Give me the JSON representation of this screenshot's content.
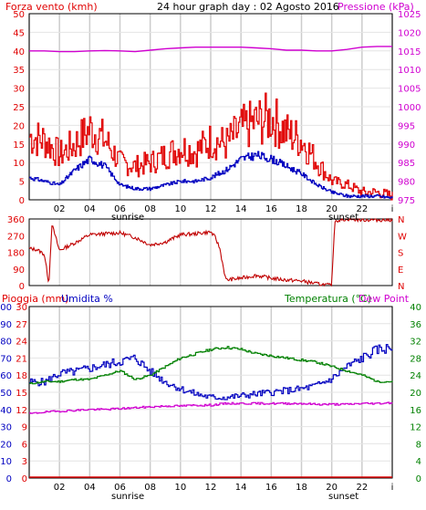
{
  "header": {
    "title": "24 hour graph day : 02 Agosto 2016",
    "left_label": "Forza vento (kmh)",
    "right_label": "Pressione (kPa)"
  },
  "labels": {
    "sunrise": "sunrise",
    "sunset": "sunset",
    "rain_label": "Pioggia (mm)",
    "humidity_label": "Umidita %",
    "temp_label": "Temperatura (°C)",
    "dew_label": "Dew Point"
  },
  "colors": {
    "wind": "#e00000",
    "avg_wind": "#0000c0",
    "pressure": "#d000d0",
    "direction": "#c00000",
    "humidity": "#0000c0",
    "temperature": "#008000",
    "dew": "#d000d0",
    "rain": "#e00000",
    "grid": "#cccccc"
  },
  "chart_data": [
    {
      "type": "line",
      "x_ticks": [
        "02",
        "04",
        "06",
        "08",
        "10",
        "12",
        "14",
        "16",
        "18",
        "20",
        "22",
        "i"
      ],
      "y_left_ticks": [
        "0",
        "5",
        "10",
        "15",
        "20",
        "25",
        "30",
        "35",
        "40",
        "45",
        "50"
      ],
      "y_right_ticks": [
        "975",
        "980",
        "985",
        "990",
        "995",
        "1000",
        "1005",
        "1010",
        "1015",
        "1020",
        "1025"
      ],
      "ylim_left": [
        0,
        50
      ],
      "ylim_right": [
        975,
        1025
      ],
      "x": [
        0,
        1,
        2,
        3,
        4,
        5,
        6,
        7,
        8,
        9,
        10,
        11,
        12,
        13,
        14,
        15,
        16,
        17,
        18,
        19,
        20,
        21,
        22,
        23,
        24
      ],
      "series": [
        {
          "role": "wind",
          "values": [
            17,
            16,
            12,
            15,
            19,
            16,
            10,
            9,
            10,
            12,
            14,
            13,
            16,
            15,
            19,
            21,
            22,
            18,
            16,
            10,
            5,
            4,
            2,
            2,
            1
          ]
        },
        {
          "role": "avg_wind",
          "values": [
            6,
            5,
            4,
            8,
            11,
            9,
            4,
            3,
            3,
            4,
            5,
            5,
            6,
            8,
            11,
            12,
            11,
            9,
            7,
            4,
            2,
            1,
            1,
            1,
            0.5
          ]
        },
        {
          "role": "pressure",
          "values": [
            1015,
            1015,
            1014.8,
            1014.8,
            1015,
            1015.1,
            1015,
            1014.8,
            1015.2,
            1015.6,
            1015.8,
            1016,
            1016,
            1016,
            1016,
            1015.8,
            1015.6,
            1015.2,
            1015.2,
            1015,
            1015,
            1015.4,
            1016,
            1016.2,
            1016.2
          ]
        }
      ],
      "grid": true
    },
    {
      "type": "line",
      "series_role": "wind_direction",
      "y_left_ticks": [
        "360",
        "270",
        "180",
        "90",
        "0"
      ],
      "y_right_ticks": [
        "N",
        "W",
        "S",
        "E",
        "N"
      ],
      "ylim": [
        0,
        360
      ],
      "x": [
        0,
        0.5,
        1,
        1.3,
        1.5,
        2,
        3,
        4,
        5,
        6,
        7,
        8,
        9,
        10,
        11,
        12,
        12.3,
        12.6,
        13,
        14,
        15,
        16,
        17,
        18,
        19,
        20,
        20.2,
        21,
        22,
        23,
        24
      ],
      "values": [
        200,
        195,
        170,
        10,
        330,
        190,
        230,
        275,
        280,
        285,
        260,
        220,
        235,
        275,
        280,
        290,
        260,
        200,
        30,
        40,
        55,
        40,
        30,
        25,
        10,
        0,
        350,
        360,
        355,
        355,
        355
      ]
    },
    {
      "type": "line",
      "x_ticks": [
        "02",
        "04",
        "06",
        "08",
        "10",
        "12",
        "14",
        "16",
        "18",
        "20",
        "22",
        "i"
      ],
      "y_humidity_ticks": [
        "0",
        "10",
        "20",
        "30",
        "40",
        "50",
        "60",
        "70",
        "80",
        "90",
        "100"
      ],
      "y_rain_ticks": [
        "0",
        "3",
        "6",
        "9",
        "12",
        "15",
        "18",
        "21",
        "24",
        "27",
        "30"
      ],
      "y_temp_ticks": [
        "0",
        "4",
        "8",
        "12",
        "16",
        "20",
        "24",
        "28",
        "32",
        "36",
        "40"
      ],
      "ylim_humidity": [
        0,
        100
      ],
      "ylim_temp": [
        0,
        40
      ],
      "x": [
        0,
        1,
        2,
        3,
        4,
        5,
        6,
        7,
        8,
        9,
        10,
        11,
        12,
        13,
        14,
        15,
        16,
        17,
        18,
        19,
        20,
        21,
        22,
        23,
        24
      ],
      "series": [
        {
          "role": "humidity",
          "values": [
            56,
            56,
            61,
            62,
            64,
            66,
            68,
            70,
            62,
            56,
            52,
            49,
            47,
            47,
            48,
            49,
            50,
            51,
            52,
            54,
            58,
            65,
            70,
            75,
            76
          ]
        },
        {
          "role": "temperature",
          "values": [
            22.0,
            22.5,
            22.5,
            23.0,
            23.0,
            24.0,
            25.0,
            23.0,
            24.0,
            26.0,
            28.0,
            29.0,
            30.0,
            30.5,
            30.0,
            29.0,
            28.5,
            28.0,
            27.5,
            27.0,
            26.0,
            25.0,
            24.0,
            22.5,
            22.5
          ]
        },
        {
          "role": "dew_point",
          "values": [
            15.0,
            15.4,
            15.6,
            15.8,
            16.0,
            16.0,
            16.2,
            16.4,
            16.6,
            16.8,
            16.8,
            17.0,
            17.0,
            17.4,
            17.4,
            17.4,
            17.4,
            17.4,
            17.4,
            17.2,
            17.2,
            17.2,
            17.4,
            17.4,
            17.6
          ]
        },
        {
          "role": "rain",
          "values": [
            0,
            0,
            0,
            0,
            0,
            0,
            0,
            0,
            0,
            0,
            0,
            0,
            0,
            0,
            0,
            0,
            0,
            0,
            0,
            0,
            0,
            0,
            0,
            0,
            0
          ]
        }
      ],
      "grid": true
    }
  ]
}
